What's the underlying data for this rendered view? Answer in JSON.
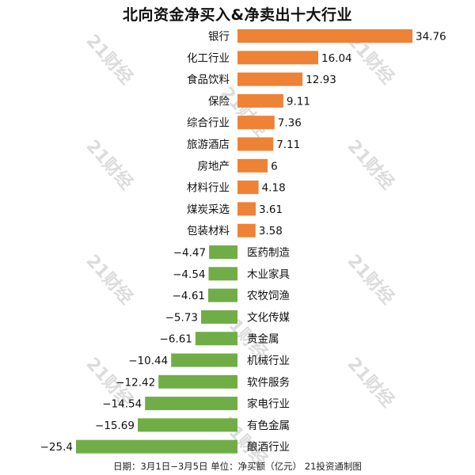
{
  "chart_data": {
    "type": "bar",
    "orientation": "horizontal",
    "title": "北向资金净买入&净卖出十大行业",
    "categories": [
      "银行",
      "化工行业",
      "食品饮料",
      "保险",
      "综合行业",
      "旅游酒店",
      "房地产",
      "材料行业",
      "煤炭采选",
      "包装材料",
      "医药制造",
      "木业家具",
      "农牧饲渔",
      "文化传媒",
      "贵金属",
      "机械行业",
      "软件服务",
      "家电行业",
      "有色金属",
      "酿酒行业"
    ],
    "values": [
      34.76,
      16.04,
      12.93,
      9.11,
      7.36,
      7.11,
      6,
      4.18,
      3.61,
      3.58,
      -4.47,
      -4.54,
      -4.61,
      -5.73,
      -6.61,
      -10.44,
      -12.42,
      -14.54,
      -15.69,
      -25.4
    ],
    "value_labels": [
      "34.76",
      "16.04",
      "12.93",
      "9.11",
      "7.36",
      "7.11",
      "6",
      "4.18",
      "3.61",
      "3.58",
      "−4.47",
      "−4.54",
      "−4.61",
      "−5.73",
      "−6.61",
      "−10.44",
      "−12.42",
      "−14.54",
      "−15.69",
      "−25.4"
    ],
    "colors": {
      "positive": "#ee8236",
      "negative": "#70ad47"
    },
    "footer": "日期：3月1日−3月5日 单位：净买额（亿元） 21投资通制图",
    "watermark": "21财经"
  }
}
